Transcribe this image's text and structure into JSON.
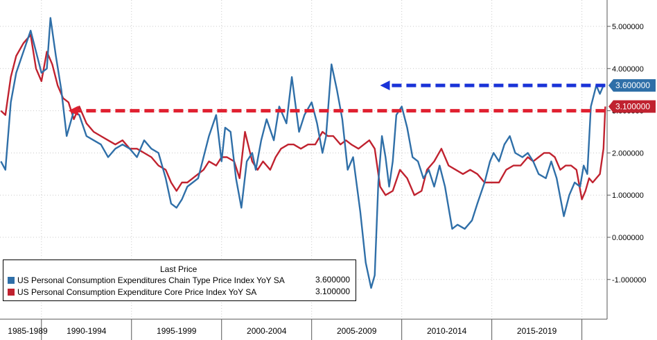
{
  "chart_data": {
    "type": "line",
    "title": "",
    "xlabel": "",
    "ylabel": "",
    "ylim": [
      -1.5,
      5.5
    ],
    "xlim": [
      1987.7,
      2021.4
    ],
    "y_ticks": [
      "5.000000",
      "4.000000",
      "3.000000",
      "2.000000",
      "1.000000",
      "0.000000",
      "-1.000000"
    ],
    "y_tick_values": [
      5,
      4,
      3,
      2,
      1,
      0,
      -1
    ],
    "x_period_labels": [
      "1985-1989",
      "1990-1994",
      "1995-1999",
      "2000-2004",
      "2005-2009",
      "2010-2014",
      "2015-2019"
    ],
    "x_period_boundaries": [
      1990,
      1995,
      2000,
      2005,
      2010,
      2015,
      2020
    ],
    "grid": true,
    "legend": {
      "placement": "bottom-left",
      "header": "Last Price",
      "entries": [
        {
          "label": "US Personal Consumption Expenditures Chain Type Price Index YoY SA",
          "value": "3.600000",
          "color": "#2f6fa8"
        },
        {
          "label": "US Personal Consumption Expenditure Core Price Index YoY SA",
          "value": "3.100000",
          "color": "#c0222f"
        }
      ]
    },
    "series": [
      {
        "name": "US Personal Consumption Expenditures Chain Type Price Index YoY SA",
        "color": "#2f6fa8",
        "x": [
          1987.75,
          1988.0,
          1988.3,
          1988.6,
          1989.0,
          1989.4,
          1989.7,
          1990.0,
          1990.3,
          1990.5,
          1990.8,
          1991.1,
          1991.4,
          1991.8,
          1992.1,
          1992.5,
          1992.9,
          1993.3,
          1993.7,
          1994.1,
          1994.5,
          1994.9,
          1995.3,
          1995.7,
          1996.1,
          1996.5,
          1996.9,
          1997.2,
          1997.5,
          1997.8,
          1998.1,
          1998.4,
          1998.7,
          1999.0,
          1999.3,
          1999.7,
          2000.0,
          2000.2,
          2000.5,
          2000.8,
          2001.1,
          2001.4,
          2001.7,
          2001.9,
          2002.2,
          2002.5,
          2002.9,
          2003.2,
          2003.6,
          2003.9,
          2004.3,
          2004.6,
          2005.0,
          2005.3,
          2005.6,
          2005.8,
          2006.1,
          2006.4,
          2006.7,
          2007.0,
          2007.3,
          2007.7,
          2008.0,
          2008.3,
          2008.5,
          2008.7,
          2008.9,
          2009.1,
          2009.3,
          2009.5,
          2009.7,
          2010.0,
          2010.3,
          2010.6,
          2010.9,
          2011.2,
          2011.5,
          2011.8,
          2012.1,
          2012.4,
          2012.8,
          2013.1,
          2013.5,
          2013.9,
          2014.2,
          2014.6,
          2014.9,
          2015.1,
          2015.4,
          2015.7,
          2016.0,
          2016.3,
          2016.7,
          2017.0,
          2017.3,
          2017.6,
          2018.0,
          2018.3,
          2018.6,
          2019.0,
          2019.3,
          2019.6,
          2019.9,
          2020.1,
          2020.3,
          2020.5,
          2020.8,
          2021.0,
          2021.2,
          2021.3
        ],
        "y": [
          1.8,
          1.6,
          3.2,
          3.9,
          4.4,
          4.9,
          4.4,
          3.9,
          4.0,
          5.2,
          4.3,
          3.5,
          2.4,
          3.0,
          2.9,
          2.4,
          2.3,
          2.2,
          1.9,
          2.1,
          2.2,
          2.1,
          1.9,
          2.3,
          2.1,
          2.0,
          1.4,
          0.8,
          0.7,
          0.9,
          1.2,
          1.3,
          1.4,
          1.9,
          2.4,
          2.9,
          1.8,
          2.6,
          2.5,
          1.4,
          0.7,
          1.8,
          2.0,
          1.6,
          2.3,
          2.8,
          2.3,
          3.1,
          2.7,
          3.8,
          2.5,
          2.9,
          3.2,
          2.7,
          2.0,
          2.4,
          4.1,
          3.5,
          2.8,
          1.6,
          1.9,
          0.6,
          -0.6,
          -1.2,
          -0.9,
          1.3,
          2.4,
          1.9,
          1.2,
          1.8,
          2.9,
          3.1,
          2.6,
          1.9,
          1.8,
          1.4,
          1.6,
          1.2,
          1.7,
          1.2,
          0.2,
          0.3,
          0.2,
          0.4,
          0.8,
          1.3,
          1.8,
          2.0,
          1.8,
          2.2,
          2.4,
          2.0,
          1.9,
          2.0,
          1.8,
          1.5,
          1.4,
          1.8,
          1.4,
          0.5,
          1.0,
          1.3,
          1.2,
          1.7,
          1.5,
          3.1,
          3.6,
          3.4,
          3.6,
          3.6
        ]
      },
      {
        "name": "US Personal Consumption Expenditure Core Price Index YoY SA",
        "color": "#c0222f",
        "x": [
          1987.75,
          1988.0,
          1988.3,
          1988.6,
          1989.0,
          1989.4,
          1989.7,
          1990.0,
          1990.3,
          1990.6,
          1990.9,
          1991.2,
          1991.5,
          1991.8,
          1992.1,
          1992.5,
          1992.9,
          1993.3,
          1993.7,
          1994.1,
          1994.5,
          1994.9,
          1995.3,
          1995.7,
          1996.1,
          1996.5,
          1996.9,
          1997.2,
          1997.5,
          1997.8,
          1998.1,
          1998.4,
          1998.7,
          1999.0,
          1999.3,
          1999.7,
          2000.0,
          2000.3,
          2000.7,
          2001.0,
          2001.3,
          2001.7,
          2002.0,
          2002.3,
          2002.7,
          2003.0,
          2003.3,
          2003.7,
          2004.0,
          2004.4,
          2004.8,
          2005.2,
          2005.6,
          2005.9,
          2006.2,
          2006.6,
          2006.9,
          2007.2,
          2007.6,
          2007.9,
          2008.2,
          2008.5,
          2008.8,
          2009.1,
          2009.5,
          2009.9,
          2010.3,
          2010.7,
          2011.1,
          2011.4,
          2011.8,
          2012.2,
          2012.6,
          2013.0,
          2013.4,
          2013.8,
          2014.2,
          2014.6,
          2015.0,
          2015.4,
          2015.8,
          2016.2,
          2016.6,
          2017.0,
          2017.3,
          2017.6,
          2017.9,
          2018.2,
          2018.5,
          2018.8,
          2019.1,
          2019.4,
          2019.7,
          2020.0,
          2020.2,
          2020.4,
          2020.6,
          2020.8,
          2021.0,
          2021.2,
          2021.3
        ],
        "y": [
          3.0,
          2.9,
          3.8,
          4.3,
          4.6,
          4.8,
          4.0,
          3.7,
          4.4,
          4.1,
          3.6,
          3.3,
          3.2,
          2.8,
          3.1,
          2.7,
          2.5,
          2.4,
          2.3,
          2.2,
          2.3,
          2.1,
          2.1,
          2.0,
          1.9,
          1.7,
          1.6,
          1.3,
          1.1,
          1.3,
          1.3,
          1.4,
          1.5,
          1.6,
          1.8,
          1.7,
          1.9,
          1.9,
          1.8,
          1.4,
          2.5,
          1.8,
          1.6,
          1.8,
          1.6,
          1.9,
          2.1,
          2.2,
          2.2,
          2.1,
          2.2,
          2.2,
          2.5,
          2.4,
          2.4,
          2.2,
          2.3,
          2.2,
          2.1,
          2.2,
          2.3,
          2.1,
          1.2,
          1.0,
          1.1,
          1.6,
          1.4,
          1.0,
          1.1,
          1.6,
          1.8,
          2.1,
          1.7,
          1.6,
          1.5,
          1.6,
          1.5,
          1.3,
          1.3,
          1.3,
          1.6,
          1.7,
          1.7,
          1.9,
          1.8,
          1.9,
          2.0,
          2.0,
          1.9,
          1.6,
          1.7,
          1.7,
          1.6,
          0.9,
          1.1,
          1.4,
          1.3,
          1.4,
          1.5,
          2.1,
          3.1
        ]
      }
    ],
    "annotations": [
      {
        "kind": "dashed-arrow",
        "color": "#1a33d8",
        "y": 3.6,
        "x_start": 2021.3,
        "x_end": 2008.8
      },
      {
        "kind": "dashed-arrow",
        "color": "#e02030",
        "y": 3.0,
        "x_start": 2021.3,
        "x_end": 1991.5
      }
    ],
    "last_value_tags": [
      {
        "value": "3.600000",
        "y": 3.6,
        "color": "#2f6fa8"
      },
      {
        "value": "3.100000",
        "y": 3.1,
        "color": "#c0222f"
      }
    ]
  }
}
